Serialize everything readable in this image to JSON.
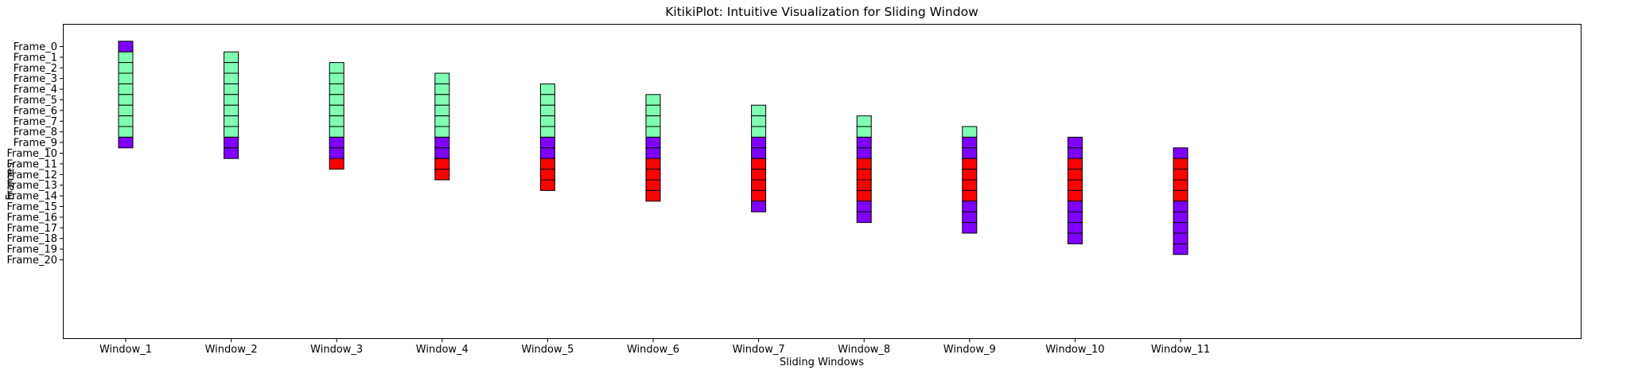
{
  "chart_data": {
    "type": "heatmap",
    "title": "KitikiPlot: Intuitive Visualization for Sliding Window",
    "xlabel": "Sliding Windows",
    "ylabel": "Frames",
    "x_categories": [
      "Window_1",
      "Window_2",
      "Window_3",
      "Window_4",
      "Window_5",
      "Window_6",
      "Window_7",
      "Window_8",
      "Window_9",
      "Window_10",
      "Window_11"
    ],
    "y_categories": [
      "Frame_0",
      "Frame_1",
      "Frame_2",
      "Frame_3",
      "Frame_4",
      "Frame_5",
      "Frame_6",
      "Frame_7",
      "Frame_8",
      "Frame_9",
      "Frame_10",
      "Frame_11",
      "Frame_12",
      "Frame_13",
      "Frame_14",
      "Frame_15",
      "Frame_16",
      "Frame_17",
      "Frame_18",
      "Frame_19",
      "Frame_20"
    ],
    "colors": {
      "A": "#8000ff",
      "B": "#80ffb4",
      "C": "#ff0000"
    },
    "windows": [
      {
        "start_frame": 0,
        "cells": [
          "A",
          "B",
          "B",
          "B",
          "B",
          "B",
          "B",
          "B",
          "B",
          "A"
        ]
      },
      {
        "start_frame": 1,
        "cells": [
          "B",
          "B",
          "B",
          "B",
          "B",
          "B",
          "B",
          "B",
          "A",
          "A"
        ]
      },
      {
        "start_frame": 2,
        "cells": [
          "B",
          "B",
          "B",
          "B",
          "B",
          "B",
          "B",
          "A",
          "A",
          "C"
        ]
      },
      {
        "start_frame": 3,
        "cells": [
          "B",
          "B",
          "B",
          "B",
          "B",
          "B",
          "A",
          "A",
          "C",
          "C"
        ]
      },
      {
        "start_frame": 4,
        "cells": [
          "B",
          "B",
          "B",
          "B",
          "B",
          "A",
          "A",
          "C",
          "C",
          "C"
        ]
      },
      {
        "start_frame": 5,
        "cells": [
          "B",
          "B",
          "B",
          "B",
          "A",
          "A",
          "C",
          "C",
          "C",
          "C"
        ]
      },
      {
        "start_frame": 6,
        "cells": [
          "B",
          "B",
          "B",
          "A",
          "A",
          "C",
          "C",
          "C",
          "C",
          "A"
        ]
      },
      {
        "start_frame": 7,
        "cells": [
          "B",
          "B",
          "A",
          "A",
          "C",
          "C",
          "C",
          "C",
          "A",
          "A"
        ]
      },
      {
        "start_frame": 8,
        "cells": [
          "B",
          "A",
          "A",
          "C",
          "C",
          "C",
          "C",
          "A",
          "A",
          "A"
        ]
      },
      {
        "start_frame": 9,
        "cells": [
          "A",
          "A",
          "C",
          "C",
          "C",
          "C",
          "A",
          "A",
          "A",
          "A"
        ]
      },
      {
        "start_frame": 10,
        "cells": [
          "A",
          "C",
          "C",
          "C",
          "C",
          "A",
          "A",
          "A",
          "A",
          "A"
        ]
      }
    ]
  }
}
